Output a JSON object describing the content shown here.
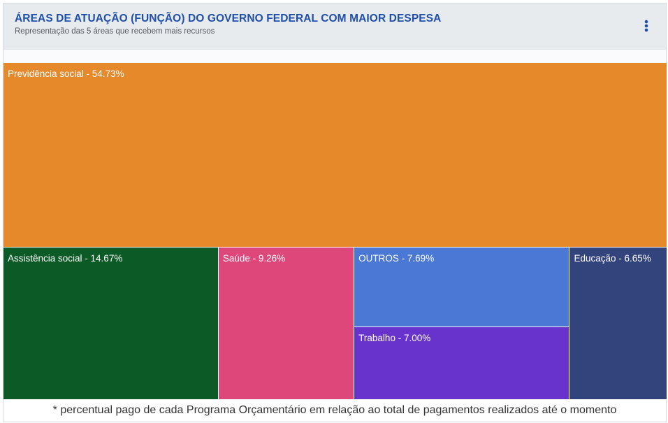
{
  "header": {
    "title": "ÁREAS DE ATUAÇÃO (FUNÇÃO) DO GOVERNO FEDERAL COM MAIOR DESPESA",
    "subtitle": "Representação das 5 áreas que recebem mais recursos",
    "menu_icon": "more-vertical-icon"
  },
  "chart_data": {
    "type": "treemap",
    "items": [
      {
        "name": "Previdência social",
        "value": 54.73,
        "label": "Previdência social - 54.73%",
        "color": "#e5892a"
      },
      {
        "name": "Assistência social",
        "value": 14.67,
        "label": "Assistência social - 14.67%",
        "color": "#0c5b26"
      },
      {
        "name": "Saúde",
        "value": 9.26,
        "label": "Saúde - 9.26%",
        "color": "#de4779"
      },
      {
        "name": "OUTROS",
        "value": 7.69,
        "label": "OUTROS - 7.69%",
        "color": "#4a78d4"
      },
      {
        "name": "Trabalho",
        "value": 7.0,
        "label": "Trabalho - 7.00%",
        "color": "#6733cc"
      },
      {
        "name": "Educação",
        "value": 6.65,
        "label": "Educação - 6.65%",
        "color": "#33437b"
      }
    ]
  },
  "footnote": "* percentual pago de cada Programa Orçamentário em relação ao total de pagamentos realizados até o momento"
}
